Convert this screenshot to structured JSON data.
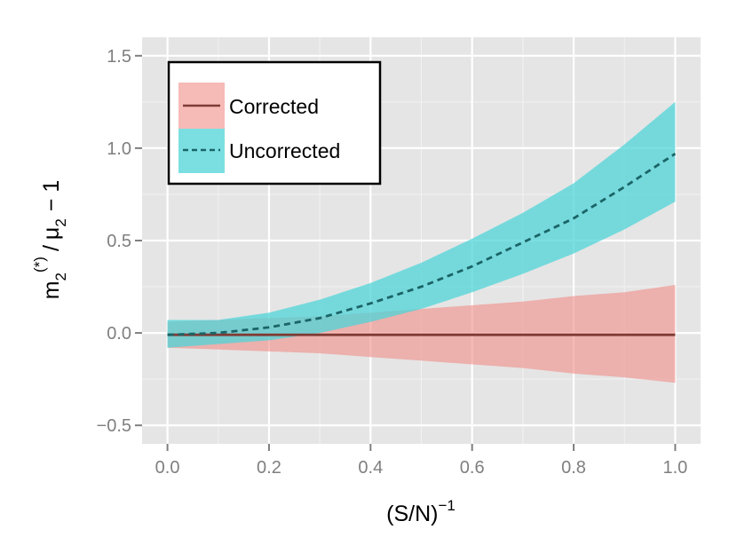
{
  "chart_data": {
    "type": "line",
    "title": "",
    "xlabel_base": "(S/N)",
    "xlabel_sup": "−1",
    "ylabel": {
      "m": "m",
      "m_sub": "2",
      "m_sup": "(*)",
      "slash": "/",
      "mu": "μ",
      "mu_sub": "2",
      "rest": "− 1"
    },
    "xlim": [
      -0.05,
      1.05
    ],
    "ylim": [
      -0.6,
      1.6
    ],
    "xticks": [
      0.0,
      0.2,
      0.4,
      0.6,
      0.8,
      1.0
    ],
    "xtick_labels": [
      "0.0",
      "0.2",
      "0.4",
      "0.6",
      "0.8",
      "1.0"
    ],
    "yticks": [
      -0.5,
      0.0,
      0.5,
      1.0,
      1.5
    ],
    "ytick_labels": [
      "−0.5",
      "0.0",
      "0.5",
      "1.0",
      "1.5"
    ],
    "grid": true,
    "legend_position": "top-left",
    "x": [
      0.0,
      0.1,
      0.2,
      0.3,
      0.4,
      0.5,
      0.6,
      0.7,
      0.8,
      0.9,
      1.0
    ],
    "series": [
      {
        "name": "Corrected",
        "line_style": "solid",
        "line_color": "#7f3b34",
        "band_color": "#f08c87",
        "y": [
          -0.01,
          -0.01,
          -0.01,
          -0.01,
          -0.01,
          -0.01,
          -0.01,
          -0.01,
          -0.01,
          -0.01,
          -0.01
        ],
        "lower": [
          -0.08,
          -0.09,
          -0.1,
          -0.11,
          -0.13,
          -0.15,
          -0.17,
          -0.19,
          -0.22,
          -0.24,
          -0.27
        ],
        "upper": [
          0.06,
          0.07,
          0.08,
          0.09,
          0.11,
          0.13,
          0.15,
          0.17,
          0.2,
          0.22,
          0.26
        ]
      },
      {
        "name": "Uncorrected",
        "line_style": "dashed",
        "line_color": "#1a6466",
        "band_color": "#4fd4d8",
        "y": [
          -0.01,
          0.0,
          0.03,
          0.08,
          0.16,
          0.25,
          0.36,
          0.49,
          0.62,
          0.79,
          0.97
        ],
        "lower": [
          -0.08,
          -0.06,
          -0.04,
          0.0,
          0.06,
          0.13,
          0.22,
          0.32,
          0.43,
          0.56,
          0.71
        ],
        "upper": [
          0.07,
          0.07,
          0.11,
          0.18,
          0.27,
          0.38,
          0.51,
          0.65,
          0.81,
          1.02,
          1.25
        ]
      }
    ]
  }
}
